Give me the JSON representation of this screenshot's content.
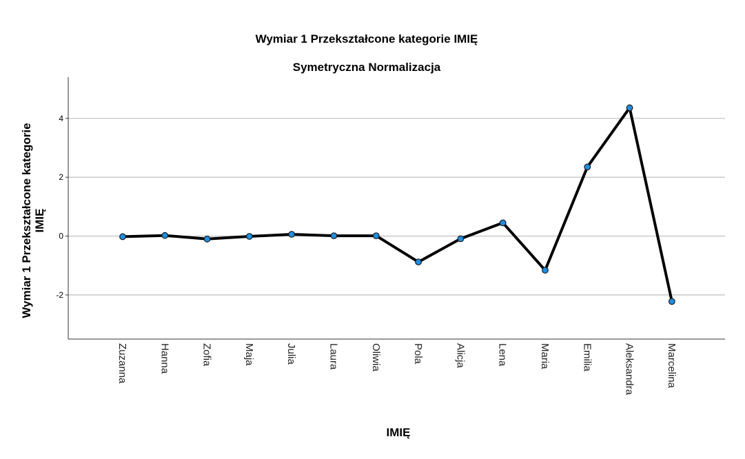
{
  "chart_data": {
    "type": "line",
    "title": "Wymiar 1 Przekształcone kategorie IMIĘ",
    "subtitle": "Symetryczna Normalizacja",
    "xlabel": "IMIĘ",
    "ylabel_lines": [
      "Wymiar 1 Przekształcone kategorie",
      "IMIĘ"
    ],
    "categories": [
      "Zuzanna",
      "Hanna",
      "Zofia",
      "Maja",
      "Julia",
      "Laura",
      "Oliwia",
      "Pola",
      "Alicja",
      "Lena",
      "Maria",
      "Emilia",
      "Aleksandra",
      "Marcelina"
    ],
    "values": [
      -0.02,
      0.02,
      -0.1,
      -0.01,
      0.06,
      0.01,
      0.01,
      -0.88,
      -0.09,
      0.45,
      -1.16,
      2.35,
      4.36,
      -2.22
    ],
    "ylim": [
      -3.5,
      5.4
    ],
    "yticks": [
      -2,
      0,
      2,
      4
    ],
    "ytick_labels": [
      "-2",
      "0",
      "2",
      "4"
    ],
    "grid": true,
    "colors": {
      "line": "#000000",
      "marker": "#1f8ee0",
      "marker_edge": "#1a1a1a",
      "grid": "#c4c4c4",
      "axis": "#333333"
    }
  }
}
